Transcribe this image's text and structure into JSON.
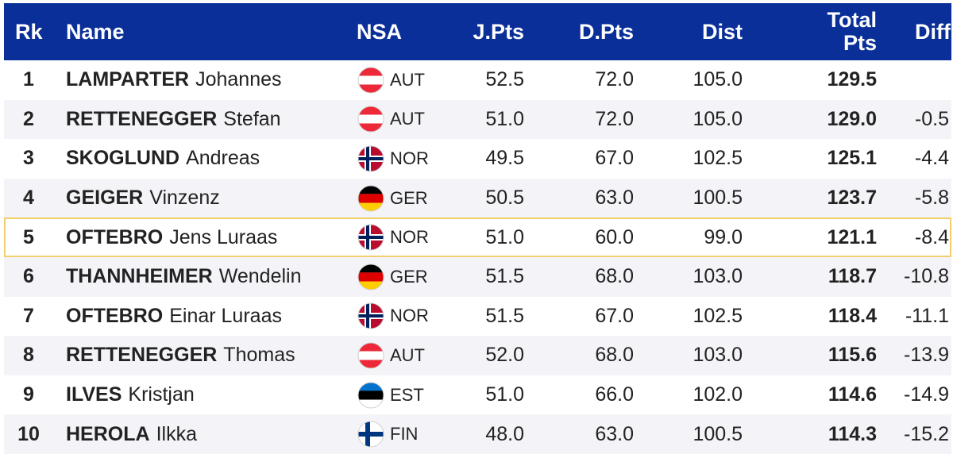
{
  "header": {
    "rk": "Rk",
    "name": "Name",
    "nsa": "NSA",
    "jpts": "J.Pts",
    "dpts": "D.Pts",
    "dist": "Dist",
    "total_line1": "Total",
    "total_line2": "Pts",
    "diff": "Diff"
  },
  "rows": [
    {
      "rk": "1",
      "last": "LAMPARTER",
      "first": "Johannes",
      "flag": "austria-flag-icon",
      "nsa": "AUT",
      "jpts": "52.5",
      "dpts": "72.0",
      "dist": "105.0",
      "total": "129.5",
      "diff": ""
    },
    {
      "rk": "2",
      "last": "RETTENEGGER",
      "first": "Stefan",
      "flag": "austria-flag-icon",
      "nsa": "AUT",
      "jpts": "51.0",
      "dpts": "72.0",
      "dist": "105.0",
      "total": "129.0",
      "diff": "-0.5"
    },
    {
      "rk": "3",
      "last": "SKOGLUND",
      "first": "Andreas",
      "flag": "norway-flag-icon",
      "nsa": "NOR",
      "jpts": "49.5",
      "dpts": "67.0",
      "dist": "102.5",
      "total": "125.1",
      "diff": "-4.4"
    },
    {
      "rk": "4",
      "last": "GEIGER",
      "first": "Vinzenz",
      "flag": "germany-flag-icon",
      "nsa": "GER",
      "jpts": "50.5",
      "dpts": "63.0",
      "dist": "100.5",
      "total": "123.7",
      "diff": "-5.8"
    },
    {
      "rk": "5",
      "last": "OFTEBRO",
      "first": "Jens Luraas",
      "flag": "norway-flag-icon",
      "nsa": "NOR",
      "jpts": "51.0",
      "dpts": "60.0",
      "dist": "99.0",
      "total": "121.1",
      "diff": "-8.4",
      "highlight": true
    },
    {
      "rk": "6",
      "last": "THANNHEIMER",
      "first": "Wendelin",
      "flag": "germany-flag-icon",
      "nsa": "GER",
      "jpts": "51.5",
      "dpts": "68.0",
      "dist": "103.0",
      "total": "118.7",
      "diff": "-10.8"
    },
    {
      "rk": "7",
      "last": "OFTEBRO",
      "first": "Einar Luraas",
      "flag": "norway-flag-icon",
      "nsa": "NOR",
      "jpts": "51.5",
      "dpts": "67.0",
      "dist": "102.5",
      "total": "118.4",
      "diff": "-11.1"
    },
    {
      "rk": "8",
      "last": "RETTENEGGER",
      "first": "Thomas",
      "flag": "austria-flag-icon",
      "nsa": "AUT",
      "jpts": "52.0",
      "dpts": "68.0",
      "dist": "103.0",
      "total": "115.6",
      "diff": "-13.9"
    },
    {
      "rk": "9",
      "last": "ILVES",
      "first": "Kristjan",
      "flag": "estonia-flag-icon",
      "nsa": "EST",
      "jpts": "51.0",
      "dpts": "66.0",
      "dist": "102.0",
      "total": "114.6",
      "diff": "-14.9"
    },
    {
      "rk": "10",
      "last": "HEROLA",
      "first": "Ilkka",
      "flag": "finland-flag-icon",
      "nsa": "FIN",
      "jpts": "48.0",
      "dpts": "63.0",
      "dist": "100.5",
      "total": "114.3",
      "diff": "-15.2"
    }
  ],
  "colors": {
    "header_bg": "#0a2f98",
    "alt_row_bg": "#f4f4f8",
    "highlight_border": "#f1cf6c"
  }
}
